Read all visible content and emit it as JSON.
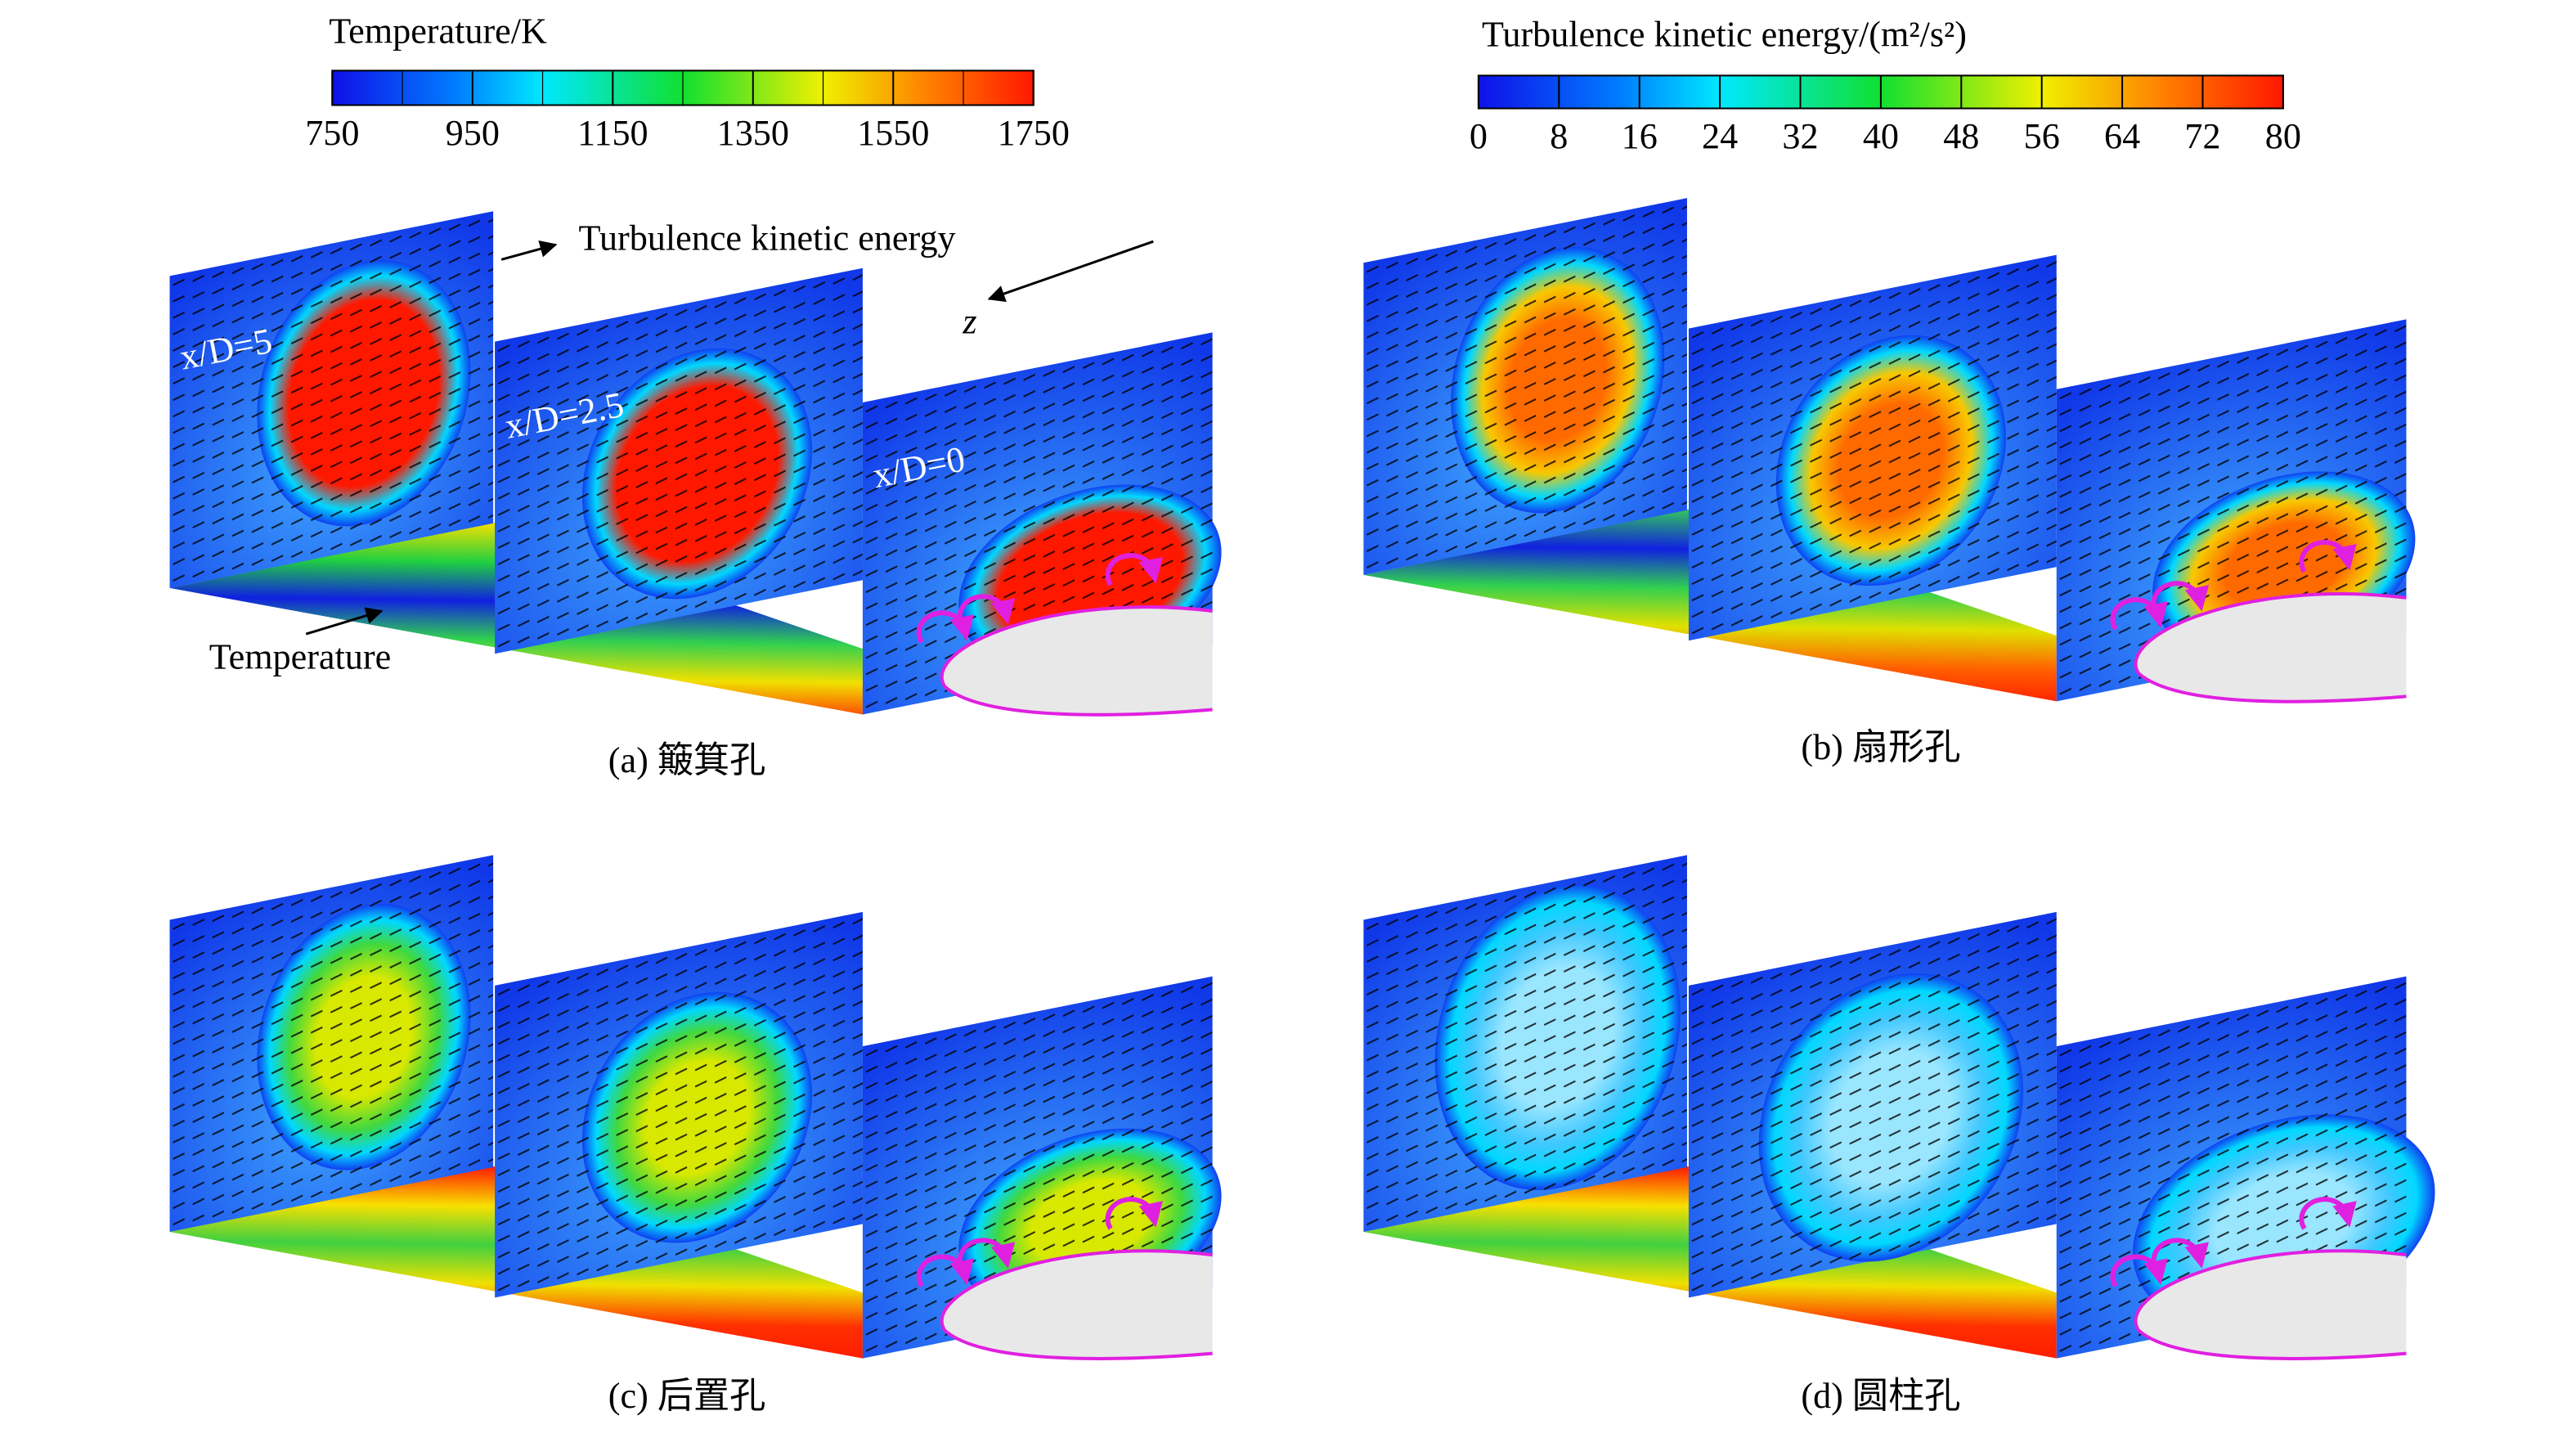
{
  "colorbars": [
    {
      "title": "Temperature/K",
      "range": [
        750,
        1750
      ],
      "ticks": [
        750,
        950,
        1150,
        1350,
        1550,
        1750
      ]
    },
    {
      "title": "Turbulence kinetic energy/(m²/s²)",
      "range": [
        0,
        80
      ],
      "ticks": [
        0,
        8,
        16,
        24,
        32,
        40,
        48,
        56,
        64,
        72,
        80
      ]
    }
  ],
  "annotations": {
    "tke_label": "Turbulence kinetic energy",
    "z_axis": "z",
    "planes": [
      "x/D=5",
      "x/D=2.5",
      "x/D=0"
    ],
    "floor_label": "Temperature"
  },
  "panels": [
    {
      "caption": "(a) 簸箕孔"
    },
    {
      "caption": "(b) 扇形孔"
    },
    {
      "caption": "(c) 后置孔"
    },
    {
      "caption": "(d) 圆柱孔"
    }
  ]
}
